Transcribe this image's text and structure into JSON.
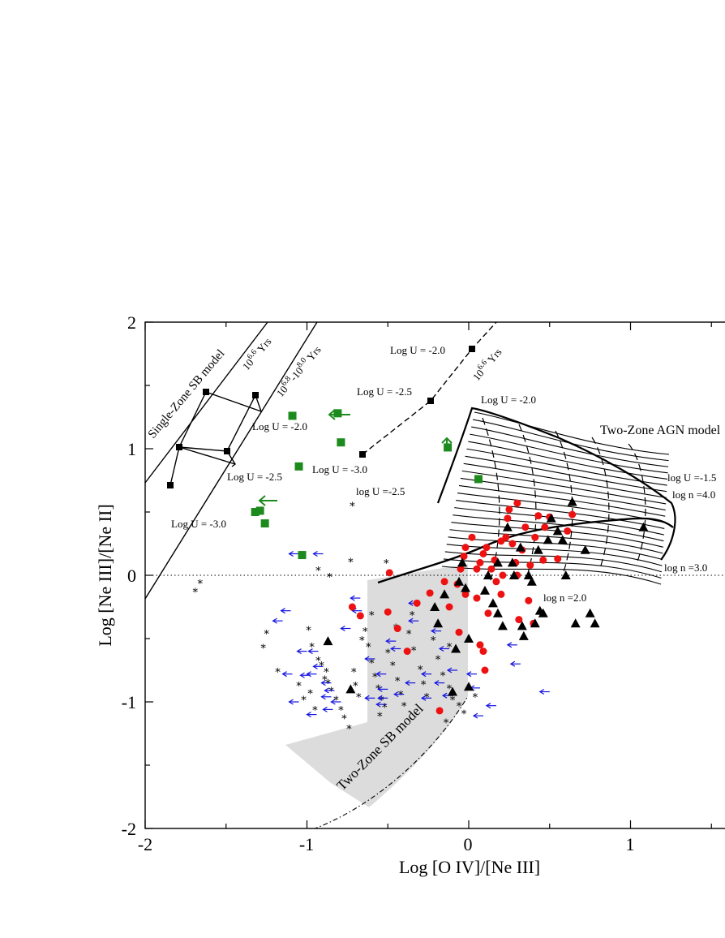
{
  "chart_data": {
    "type": "scatter",
    "xlabel": "Log [O IV]/[Ne III]",
    "ylabel": "Log [Ne III]/[Ne II]",
    "xlim": [
      -2,
      1.5
    ],
    "ylim": [
      -2,
      2
    ],
    "x_ticks": [
      "-2",
      "-1",
      "0",
      "1"
    ],
    "y_ticks": [
      "-2",
      "-1",
      "0",
      "1",
      "2"
    ],
    "grid": false,
    "colors": {
      "starburst": "#1515e0",
      "red_points": "#ee1111",
      "triangles": "#000000",
      "green_squares": "#1d8a1d",
      "shaded_region": "#dcdcdc"
    },
    "annotations": {
      "single_zone": "Single-Zone SB model",
      "age1_base": "10",
      "age1_exp": "6.6",
      "age1_unit": "Yrs",
      "age2_base1": "10",
      "age2_exp1": "6.8",
      "age2_mid": "-10",
      "age2_exp2": "8.0",
      "age2_unit": "Yrs",
      "age3_base": "10",
      "age3_exp": "6.6",
      "age3_unit": "Yrs",
      "u_single_20": "Log U = -2.0",
      "u_single_25": "Log U = -2.5",
      "u_single_30": "Log U = -3.0",
      "u_dash_20": "Log U = -2.0",
      "u_dash_25": "Log U = -2.5",
      "u_dash_30": "Log U = -3.0",
      "u_agn_20": "Log U = -2.0",
      "u_agn_25": "log U =-2.5",
      "u_agn_15": "log U =-1.5",
      "n_40": "log n =4.0",
      "n_30": "log n =3.0",
      "n_20": "log n =2.0",
      "two_zone_agn": "Two-Zone AGN model",
      "two_zone_sb": "Two-Zone SB model"
    },
    "series": [
      {
        "marker": "star",
        "color": "#1515e0",
        "points": [
          [
            -0.93,
            0.05
          ],
          [
            -0.72,
            0.56
          ],
          [
            -0.73,
            0.12
          ],
          [
            -0.86,
            0.0
          ],
          [
            -0.51,
            0.11
          ],
          [
            -1.66,
            -0.05
          ],
          [
            -1.69,
            -0.12
          ],
          [
            -1.25,
            -0.45
          ],
          [
            -1.27,
            -0.56
          ],
          [
            -1.18,
            -0.75
          ],
          [
            -0.99,
            -0.42
          ],
          [
            -0.97,
            -0.55
          ],
          [
            -0.93,
            -0.66
          ],
          [
            -0.91,
            -0.7
          ],
          [
            -0.89,
            -0.81
          ],
          [
            -0.87,
            -0.84
          ],
          [
            -0.85,
            -0.9
          ],
          [
            -0.82,
            -0.97
          ],
          [
            -0.79,
            -1.05
          ],
          [
            -0.77,
            -1.12
          ],
          [
            -0.74,
            -1.2
          ],
          [
            -0.71,
            -0.75
          ],
          [
            -0.7,
            -0.86
          ],
          [
            -0.68,
            -0.95
          ],
          [
            -0.64,
            -0.43
          ],
          [
            -0.62,
            -0.55
          ],
          [
            -0.6,
            -0.68
          ],
          [
            -0.58,
            -0.79
          ],
          [
            -0.56,
            -0.88
          ],
          [
            -0.54,
            -0.97
          ],
          [
            -0.52,
            -1.03
          ],
          [
            -0.5,
            -0.6
          ],
          [
            -0.47,
            -0.7
          ],
          [
            -0.44,
            -0.82
          ],
          [
            -0.42,
            -0.93
          ],
          [
            -0.4,
            -1.02
          ],
          [
            -0.37,
            -0.45
          ],
          [
            -0.34,
            -0.58
          ],
          [
            -0.3,
            -0.73
          ],
          [
            -0.28,
            -0.85
          ],
          [
            -0.26,
            -0.95
          ],
          [
            -0.22,
            -0.5
          ],
          [
            -0.19,
            -0.65
          ],
          [
            -0.16,
            -0.78
          ],
          [
            -0.12,
            -0.88
          ],
          [
            -0.1,
            -0.97
          ],
          [
            -0.06,
            -1.02
          ],
          [
            -0.03,
            -1.08
          ],
          [
            -0.14,
            -1.15
          ],
          [
            -0.55,
            -1.1
          ],
          [
            -0.98,
            -0.92
          ],
          [
            -1.05,
            -0.86
          ],
          [
            -1.02,
            -0.97
          ],
          [
            -0.95,
            -1.05
          ],
          [
            -0.88,
            -0.75
          ],
          [
            -0.66,
            -0.5
          ],
          [
            -0.6,
            -0.3
          ],
          [
            -0.45,
            -0.4
          ],
          [
            -0.35,
            -0.3
          ],
          [
            -0.12,
            -0.55
          ],
          [
            0.04,
            -0.95
          ]
        ]
      },
      {
        "marker": "arrow-left",
        "color": "#1515e0",
        "points": [
          [
            -0.95,
            0.17
          ],
          [
            -1.1,
            0.17
          ],
          [
            -1.15,
            -0.28
          ],
          [
            -1.2,
            -0.36
          ],
          [
            -1.05,
            -0.6
          ],
          [
            -0.72,
            -0.18
          ],
          [
            -0.71,
            -0.28
          ],
          [
            -0.78,
            -0.42
          ],
          [
            -0.63,
            -0.66
          ],
          [
            -0.56,
            -0.78
          ],
          [
            -0.5,
            -0.52
          ],
          [
            -0.47,
            -0.58
          ],
          [
            -0.36,
            -0.22
          ],
          [
            -0.36,
            -0.36
          ],
          [
            -0.22,
            -0.44
          ],
          [
            -0.2,
            -0.85
          ],
          [
            -0.15,
            -0.95
          ],
          [
            -0.28,
            -0.97
          ],
          [
            -0.55,
            -0.97
          ],
          [
            -0.98,
            -0.6
          ],
          [
            -0.95,
            -0.72
          ],
          [
            -0.99,
            -0.78
          ],
          [
            -1.14,
            -0.78
          ],
          [
            -1.03,
            -0.79
          ],
          [
            -0.9,
            -0.85
          ],
          [
            -0.88,
            -0.91
          ],
          [
            -0.9,
            -0.96
          ],
          [
            -0.84,
            -1.0
          ],
          [
            -0.89,
            -1.06
          ],
          [
            -0.99,
            -1.1
          ],
          [
            -1.1,
            -1.0
          ],
          [
            -0.63,
            -0.97
          ],
          [
            -0.55,
            -0.9
          ],
          [
            -0.45,
            -0.94
          ],
          [
            -0.38,
            -0.85
          ],
          [
            -0.28,
            -0.78
          ],
          [
            -0.17,
            -0.58
          ],
          [
            -0.12,
            -0.75
          ],
          [
            0.0,
            -0.78
          ],
          [
            0.02,
            -0.89
          ],
          [
            0.12,
            -1.03
          ],
          [
            0.04,
            -1.11
          ],
          [
            0.27,
            -0.7
          ],
          [
            0.25,
            -0.55
          ],
          [
            0.45,
            -0.92
          ],
          [
            -0.56,
            -1.02
          ]
        ]
      },
      {
        "marker": "circle",
        "color": "#ee1111",
        "points": [
          [
            -0.49,
            0.02
          ],
          [
            -0.72,
            -0.25
          ],
          [
            -0.67,
            -0.32
          ],
          [
            -0.5,
            -0.29
          ],
          [
            -0.44,
            -0.42
          ],
          [
            -0.38,
            -0.6
          ],
          [
            -0.32,
            -0.22
          ],
          [
            -0.24,
            -0.14
          ],
          [
            -0.15,
            -0.05
          ],
          [
            -0.12,
            -0.25
          ],
          [
            -0.07,
            -0.07
          ],
          [
            -0.06,
            -0.45
          ],
          [
            -0.05,
            0.05
          ],
          [
            -0.03,
            0.15
          ],
          [
            -0.02,
            0.22
          ],
          [
            0.02,
            0.3
          ],
          [
            0.05,
            -0.18
          ],
          [
            0.07,
            0.1
          ],
          [
            0.09,
            0.17
          ],
          [
            0.11,
            0.22
          ],
          [
            0.12,
            -0.3
          ],
          [
            0.14,
            0.05
          ],
          [
            0.16,
            0.12
          ],
          [
            0.17,
            -0.05
          ],
          [
            0.2,
            0.27
          ],
          [
            0.21,
            0.0
          ],
          [
            0.23,
            0.3
          ],
          [
            0.24,
            0.45
          ],
          [
            0.25,
            0.52
          ],
          [
            0.27,
            0.25
          ],
          [
            0.29,
            0.1
          ],
          [
            0.3,
            0.57
          ],
          [
            0.31,
            -0.35
          ],
          [
            0.33,
            0.2
          ],
          [
            0.35,
            0.38
          ],
          [
            0.37,
            -0.2
          ],
          [
            0.38,
            0.08
          ],
          [
            0.41,
            0.3
          ],
          [
            0.43,
            0.47
          ],
          [
            0.46,
            0.12
          ],
          [
            0.47,
            0.38
          ],
          [
            0.5,
            0.46
          ],
          [
            0.55,
            0.13
          ],
          [
            0.61,
            0.35
          ],
          [
            0.64,
            0.48
          ],
          [
            0.09,
            -0.6
          ],
          [
            0.1,
            -0.75
          ],
          [
            -0.18,
            -1.07
          ],
          [
            0.07,
            -0.55
          ],
          [
            0.2,
            -0.15
          ],
          [
            0.3,
            0.0
          ],
          [
            0.4,
            -0.38
          ],
          [
            -0.02,
            -0.15
          ],
          [
            0.05,
            0.05
          ]
        ]
      },
      {
        "marker": "triangle",
        "color": "#000000",
        "points": [
          [
            -0.87,
            -0.52
          ],
          [
            -0.73,
            -0.9
          ],
          [
            -0.08,
            -0.58
          ],
          [
            -0.15,
            -0.15
          ],
          [
            -0.06,
            -0.05
          ],
          [
            -0.04,
            0.1
          ],
          [
            -0.02,
            -0.1
          ],
          [
            0.0,
            -0.5
          ],
          [
            -0.1,
            -0.92
          ],
          [
            0.0,
            -0.88
          ],
          [
            0.12,
            0.0
          ],
          [
            0.15,
            -0.22
          ],
          [
            0.18,
            -0.3
          ],
          [
            0.18,
            0.1
          ],
          [
            0.24,
            0.38
          ],
          [
            0.28,
            0.0
          ],
          [
            0.32,
            0.22
          ],
          [
            0.33,
            -0.4
          ],
          [
            0.34,
            -0.48
          ],
          [
            0.37,
            0.0
          ],
          [
            0.39,
            -0.05
          ],
          [
            0.41,
            -0.38
          ],
          [
            0.43,
            0.2
          ],
          [
            0.46,
            -0.3
          ],
          [
            0.51,
            0.45
          ],
          [
            0.55,
            0.35
          ],
          [
            0.58,
            0.28
          ],
          [
            0.64,
            0.58
          ],
          [
            0.66,
            -0.38
          ],
          [
            0.72,
            0.2
          ],
          [
            0.75,
            -0.3
          ],
          [
            0.78,
            -0.38
          ],
          [
            1.08,
            0.38
          ],
          [
            -0.19,
            -0.38
          ],
          [
            -0.21,
            -0.25
          ],
          [
            0.21,
            -0.4
          ],
          [
            0.27,
            0.1
          ],
          [
            0.49,
            0.28
          ],
          [
            0.6,
            0.0
          ],
          [
            0.44,
            -0.28
          ],
          [
            0.1,
            -0.12
          ]
        ]
      },
      {
        "marker": "square",
        "color": "#1d8a1d",
        "points": [
          [
            -1.09,
            1.26
          ],
          [
            -0.79,
            1.05
          ],
          [
            -1.05,
            0.86
          ],
          [
            -0.81,
            1.28
          ],
          [
            -1.03,
            0.16
          ],
          [
            -1.32,
            0.5
          ],
          [
            -1.29,
            0.51
          ],
          [
            -1.26,
            0.41
          ],
          [
            0.06,
            0.76
          ],
          [
            -0.13,
            1.01
          ]
        ]
      }
    ]
  }
}
